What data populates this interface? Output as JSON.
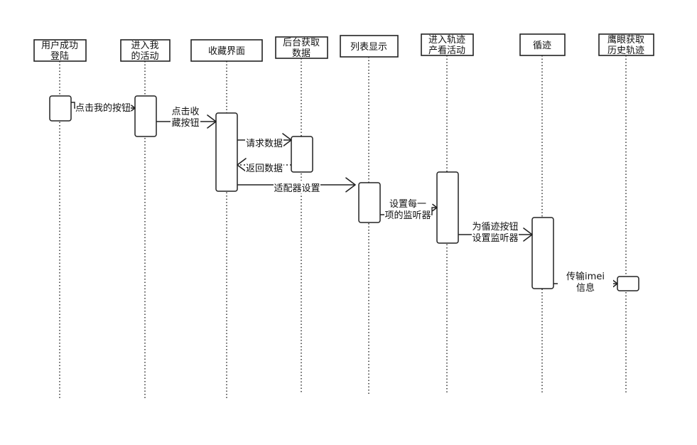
{
  "actors": [
    {
      "id": "login",
      "lines": [
        "用户成功",
        "登陆"
      ]
    },
    {
      "id": "my-activity",
      "lines": [
        "进入我",
        "的活动"
      ]
    },
    {
      "id": "favorites",
      "lines": [
        "收藏界面"
      ]
    },
    {
      "id": "backend",
      "lines": [
        "后台获取",
        "数据"
      ]
    },
    {
      "id": "list",
      "lines": [
        "列表显示"
      ]
    },
    {
      "id": "track",
      "lines": [
        "进入轨迹",
        "产看活动"
      ]
    },
    {
      "id": "loop",
      "lines": [
        "循迹"
      ]
    },
    {
      "id": "eagle-eye",
      "lines": [
        "鹰眼获取",
        "历史轨迹"
      ]
    }
  ],
  "messages": [
    {
      "id": "click-my-button",
      "from": "login",
      "to": "my-activity",
      "lines": [
        "点击我的按钮"
      ],
      "style": "solid"
    },
    {
      "id": "click-favorite-button",
      "from": "my-activity",
      "to": "favorites",
      "lines": [
        "点击收",
        "藏按钮"
      ],
      "style": "solid"
    },
    {
      "id": "request-data",
      "from": "favorites",
      "to": "backend",
      "lines": [
        "请求数据"
      ],
      "style": "solid"
    },
    {
      "id": "return-data",
      "from": "backend",
      "to": "favorites",
      "lines": [
        "返回数据"
      ],
      "style": "dashed"
    },
    {
      "id": "adapter-settings",
      "from": "favorites",
      "to": "list",
      "lines": [
        "适配器设置"
      ],
      "style": "solid"
    },
    {
      "id": "set-item-listener",
      "from": "list",
      "to": "track",
      "lines": [
        "设置每一",
        "项的监听器"
      ],
      "style": "solid"
    },
    {
      "id": "set-loop-listener",
      "from": "track",
      "to": "loop",
      "lines": [
        "为循迹按钮",
        "设置监听器"
      ],
      "style": "solid"
    },
    {
      "id": "send-imei",
      "from": "loop",
      "to": "eagle-eye",
      "lines": [
        "传输imei",
        "信息"
      ],
      "style": "solid"
    }
  ]
}
